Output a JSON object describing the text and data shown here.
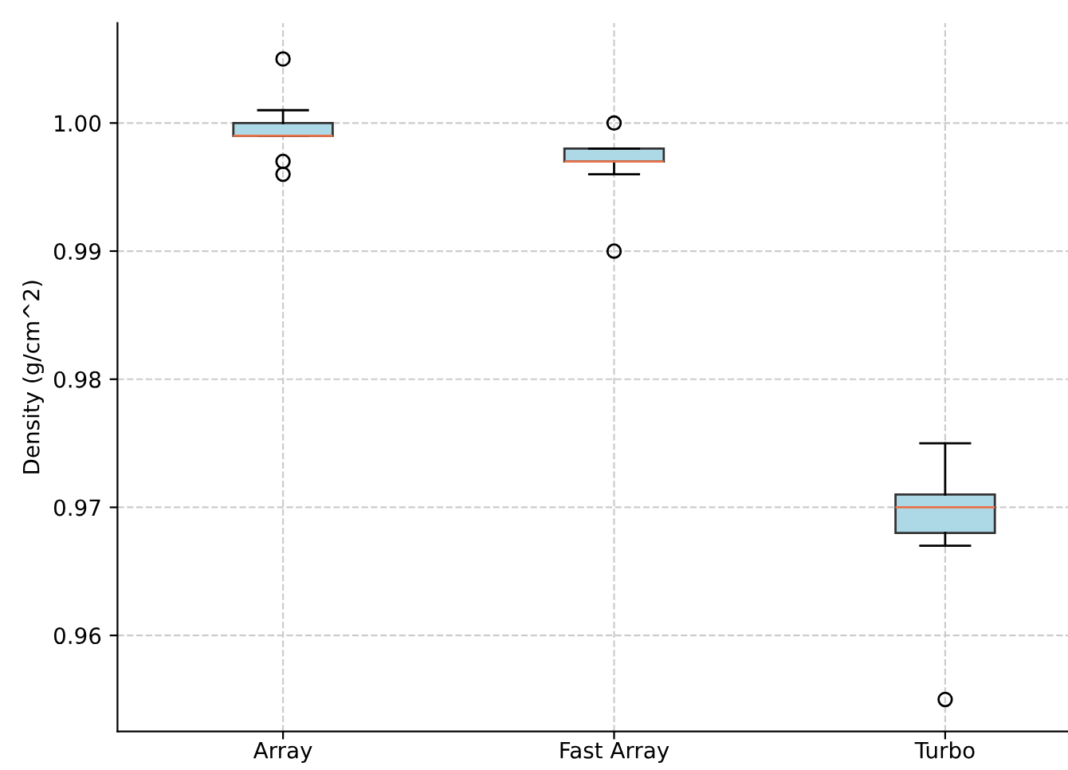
{
  "chart_data": {
    "type": "box",
    "ylabel": "Density (g/cm^2)",
    "categories": [
      "Array",
      "Fast Array",
      "Turbo"
    ],
    "boxes": [
      {
        "low": 0.999,
        "q1": 0.999,
        "median": 0.999,
        "q3": 1.0,
        "high": 1.001,
        "outliers": [
          1.005,
          0.997,
          0.996
        ]
      },
      {
        "low": 0.996,
        "q1": 0.997,
        "median": 0.997,
        "q3": 0.998,
        "high": 0.998,
        "outliers": [
          1.0,
          0.99
        ]
      },
      {
        "low": 0.967,
        "q1": 0.968,
        "median": 0.97,
        "q3": 0.971,
        "high": 0.975,
        "outliers": [
          0.955
        ]
      }
    ],
    "color": "#add8e6",
    "ylim": [
      0.9525,
      1.0078
    ],
    "yticks": [
      0.96,
      0.97,
      0.98,
      0.99,
      {
        "value": 1.0,
        "label": "1.00"
      }
    ],
    "grid": true
  }
}
